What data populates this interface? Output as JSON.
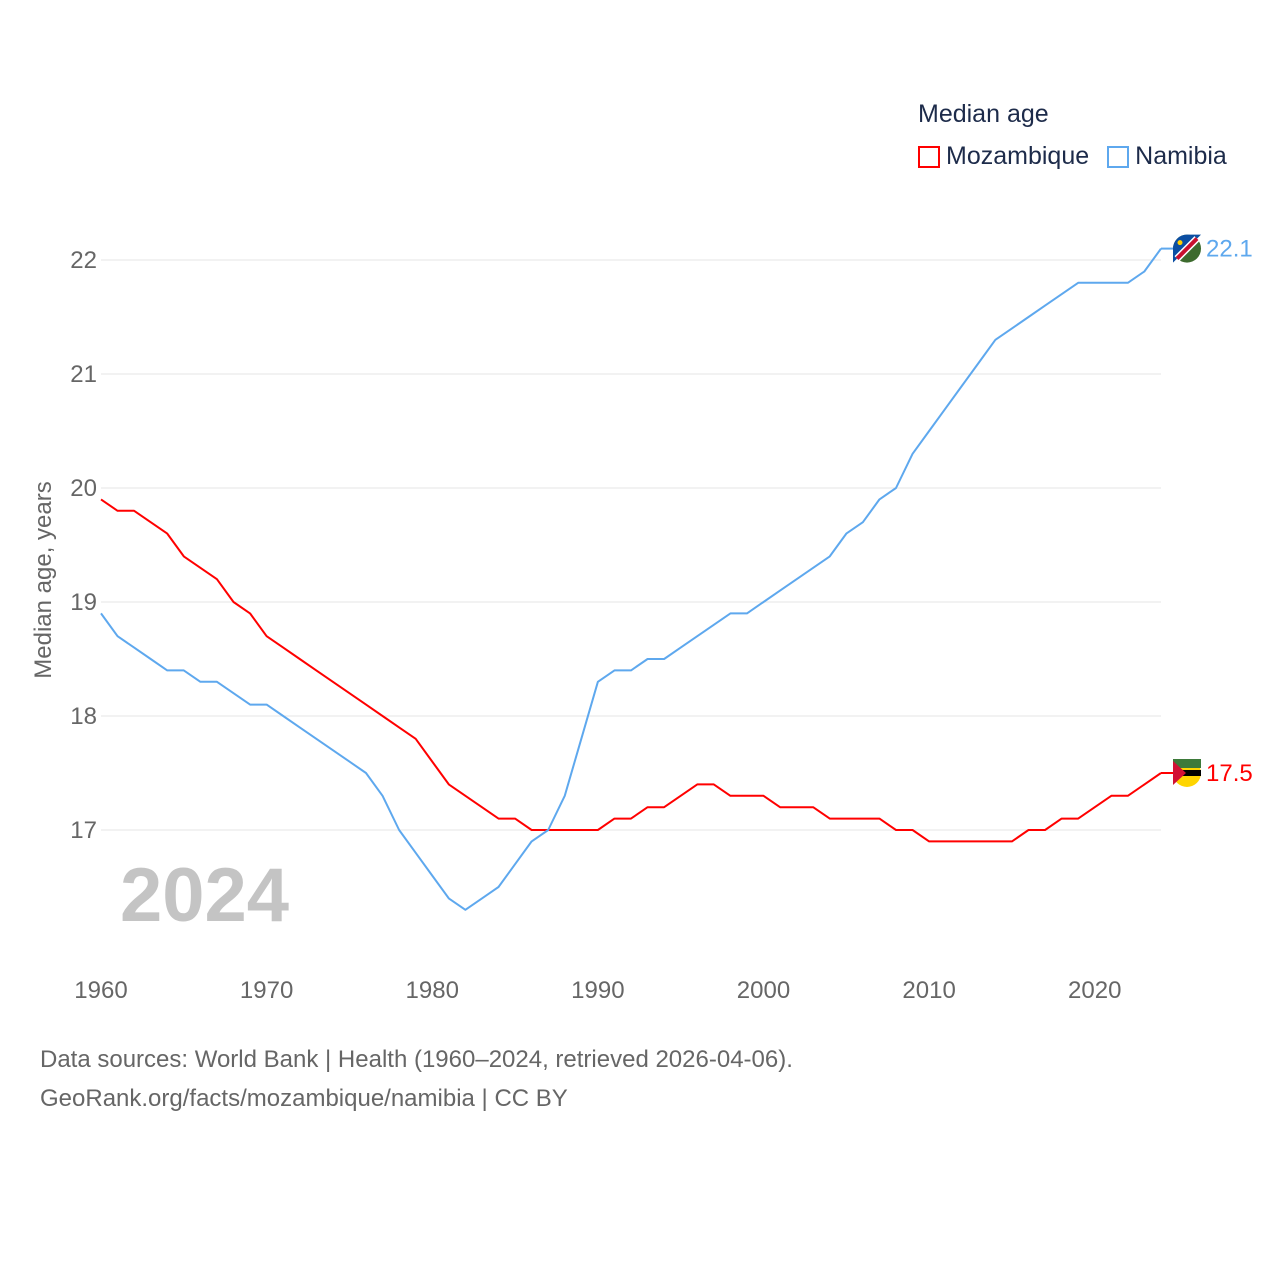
{
  "legend": {
    "title": "Median age"
  },
  "current_year": "2024",
  "source_line1": "Data sources: World Bank | Health (1960–2024, retrieved 2026-04-06).",
  "source_line2": "GeoRank.org/facts/mozambique/namibia | CC BY",
  "chart_data": {
    "type": "line",
    "title": "Median age",
    "xlabel": "",
    "ylabel": "Median age, years",
    "xlim": [
      1960,
      2024
    ],
    "ylim": [
      15.95,
      22.4
    ],
    "xticks": [
      1960,
      1970,
      1980,
      1990,
      2000,
      2010,
      2020
    ],
    "yticks": [
      17,
      18,
      19,
      20,
      21,
      22
    ],
    "grid": true,
    "legend_position": "top-right",
    "x": [
      1960,
      1961,
      1962,
      1963,
      1964,
      1965,
      1966,
      1967,
      1968,
      1969,
      1970,
      1971,
      1972,
      1973,
      1974,
      1975,
      1976,
      1977,
      1978,
      1979,
      1980,
      1981,
      1982,
      1983,
      1984,
      1985,
      1986,
      1987,
      1988,
      1989,
      1990,
      1991,
      1992,
      1993,
      1994,
      1995,
      1996,
      1997,
      1998,
      1999,
      2000,
      2001,
      2002,
      2003,
      2004,
      2005,
      2006,
      2007,
      2008,
      2009,
      2010,
      2011,
      2012,
      2013,
      2014,
      2015,
      2016,
      2017,
      2018,
      2019,
      2020,
      2021,
      2022,
      2023,
      2024
    ],
    "series": [
      {
        "name": "Mozambique",
        "color": "#ff0000",
        "end_label": "17.5",
        "values": [
          19.9,
          19.8,
          19.8,
          19.7,
          19.6,
          19.4,
          19.3,
          19.2,
          19.0,
          18.9,
          18.7,
          18.6,
          18.5,
          18.4,
          18.3,
          18.2,
          18.1,
          18.0,
          17.9,
          17.8,
          17.6,
          17.4,
          17.3,
          17.2,
          17.1,
          17.1,
          17.0,
          17.0,
          17.0,
          17.0,
          17.0,
          17.1,
          17.1,
          17.2,
          17.2,
          17.3,
          17.4,
          17.4,
          17.3,
          17.3,
          17.3,
          17.2,
          17.2,
          17.2,
          17.1,
          17.1,
          17.1,
          17.1,
          17.0,
          17.0,
          16.9,
          16.9,
          16.9,
          16.9,
          16.9,
          16.9,
          17.0,
          17.0,
          17.1,
          17.1,
          17.2,
          17.3,
          17.3,
          17.4,
          17.5
        ]
      },
      {
        "name": "Namibia",
        "color": "#5ea8ee",
        "end_label": "22.1",
        "values": [
          18.9,
          18.7,
          18.6,
          18.5,
          18.4,
          18.4,
          18.3,
          18.3,
          18.2,
          18.1,
          18.1,
          18.0,
          17.9,
          17.8,
          17.7,
          17.6,
          17.5,
          17.3,
          17.0,
          16.8,
          16.6,
          16.4,
          16.3,
          16.4,
          16.5,
          16.7,
          16.9,
          17.0,
          17.3,
          17.8,
          18.3,
          18.4,
          18.4,
          18.5,
          18.5,
          18.6,
          18.7,
          18.8,
          18.9,
          18.9,
          19.0,
          19.1,
          19.2,
          19.3,
          19.4,
          19.6,
          19.7,
          19.9,
          20.0,
          20.3,
          20.5,
          20.7,
          20.9,
          21.1,
          21.3,
          21.4,
          21.5,
          21.6,
          21.7,
          21.8,
          21.8,
          21.8,
          21.8,
          21.9,
          22.1
        ]
      }
    ]
  }
}
